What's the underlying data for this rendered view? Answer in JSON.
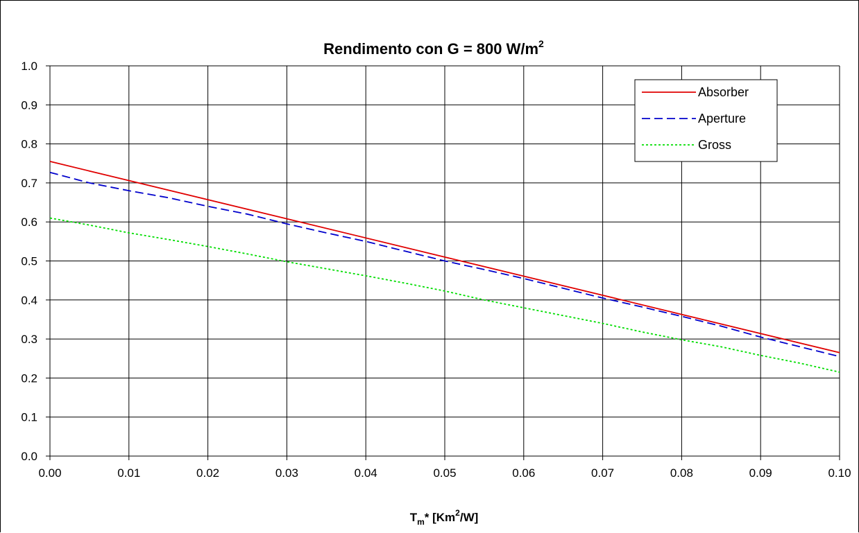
{
  "chart_data": {
    "type": "line",
    "title": {
      "main": "Rendimento con G = 800 W/m",
      "sup": "2"
    },
    "xlabel": {
      "base": "T",
      "sub": "m",
      "mid": "* [Km",
      "sup": "2",
      "end": "/W]"
    },
    "ylabel": "",
    "xlim": [
      0,
      0.1
    ],
    "ylim": [
      0,
      1.0
    ],
    "x_ticks": [
      "0.00",
      "0.01",
      "0.02",
      "0.03",
      "0.04",
      "0.05",
      "0.06",
      "0.07",
      "0.08",
      "0.09",
      "0.10"
    ],
    "y_ticks": [
      "0.0",
      "0.1",
      "0.2",
      "0.3",
      "0.4",
      "0.5",
      "0.6",
      "0.7",
      "0.8",
      "0.9",
      "1.0"
    ],
    "grid": true,
    "legend_position": "top-right",
    "series": [
      {
        "name": "Absorber",
        "color": "#e00000",
        "style": "solid",
        "x": [
          0.0,
          0.1
        ],
        "y": [
          0.755,
          0.265
        ]
      },
      {
        "name": "Aperture",
        "color": "#0000cc",
        "style": "dashed",
        "x": [
          0.0,
          0.005,
          0.01,
          0.015,
          0.02,
          0.025,
          0.03,
          0.035,
          0.04,
          0.045,
          0.05,
          0.055,
          0.06,
          0.065,
          0.07,
          0.075,
          0.08,
          0.085,
          0.09,
          0.095,
          0.1
        ],
        "y": [
          0.727,
          0.7,
          0.68,
          0.662,
          0.64,
          0.62,
          0.595,
          0.572,
          0.55,
          0.525,
          0.5,
          0.478,
          0.455,
          0.43,
          0.405,
          0.382,
          0.358,
          0.333,
          0.305,
          0.28,
          0.255
        ]
      },
      {
        "name": "Gross",
        "color": "#00dd00",
        "style": "dotted",
        "x": [
          0.0,
          0.005,
          0.01,
          0.015,
          0.02,
          0.025,
          0.03,
          0.035,
          0.04,
          0.045,
          0.05,
          0.055,
          0.06,
          0.065,
          0.07,
          0.075,
          0.08,
          0.085,
          0.09,
          0.095,
          0.1
        ],
        "y": [
          0.61,
          0.592,
          0.572,
          0.555,
          0.537,
          0.518,
          0.498,
          0.48,
          0.462,
          0.443,
          0.423,
          0.4,
          0.38,
          0.36,
          0.34,
          0.318,
          0.298,
          0.28,
          0.258,
          0.238,
          0.215
        ]
      }
    ]
  }
}
